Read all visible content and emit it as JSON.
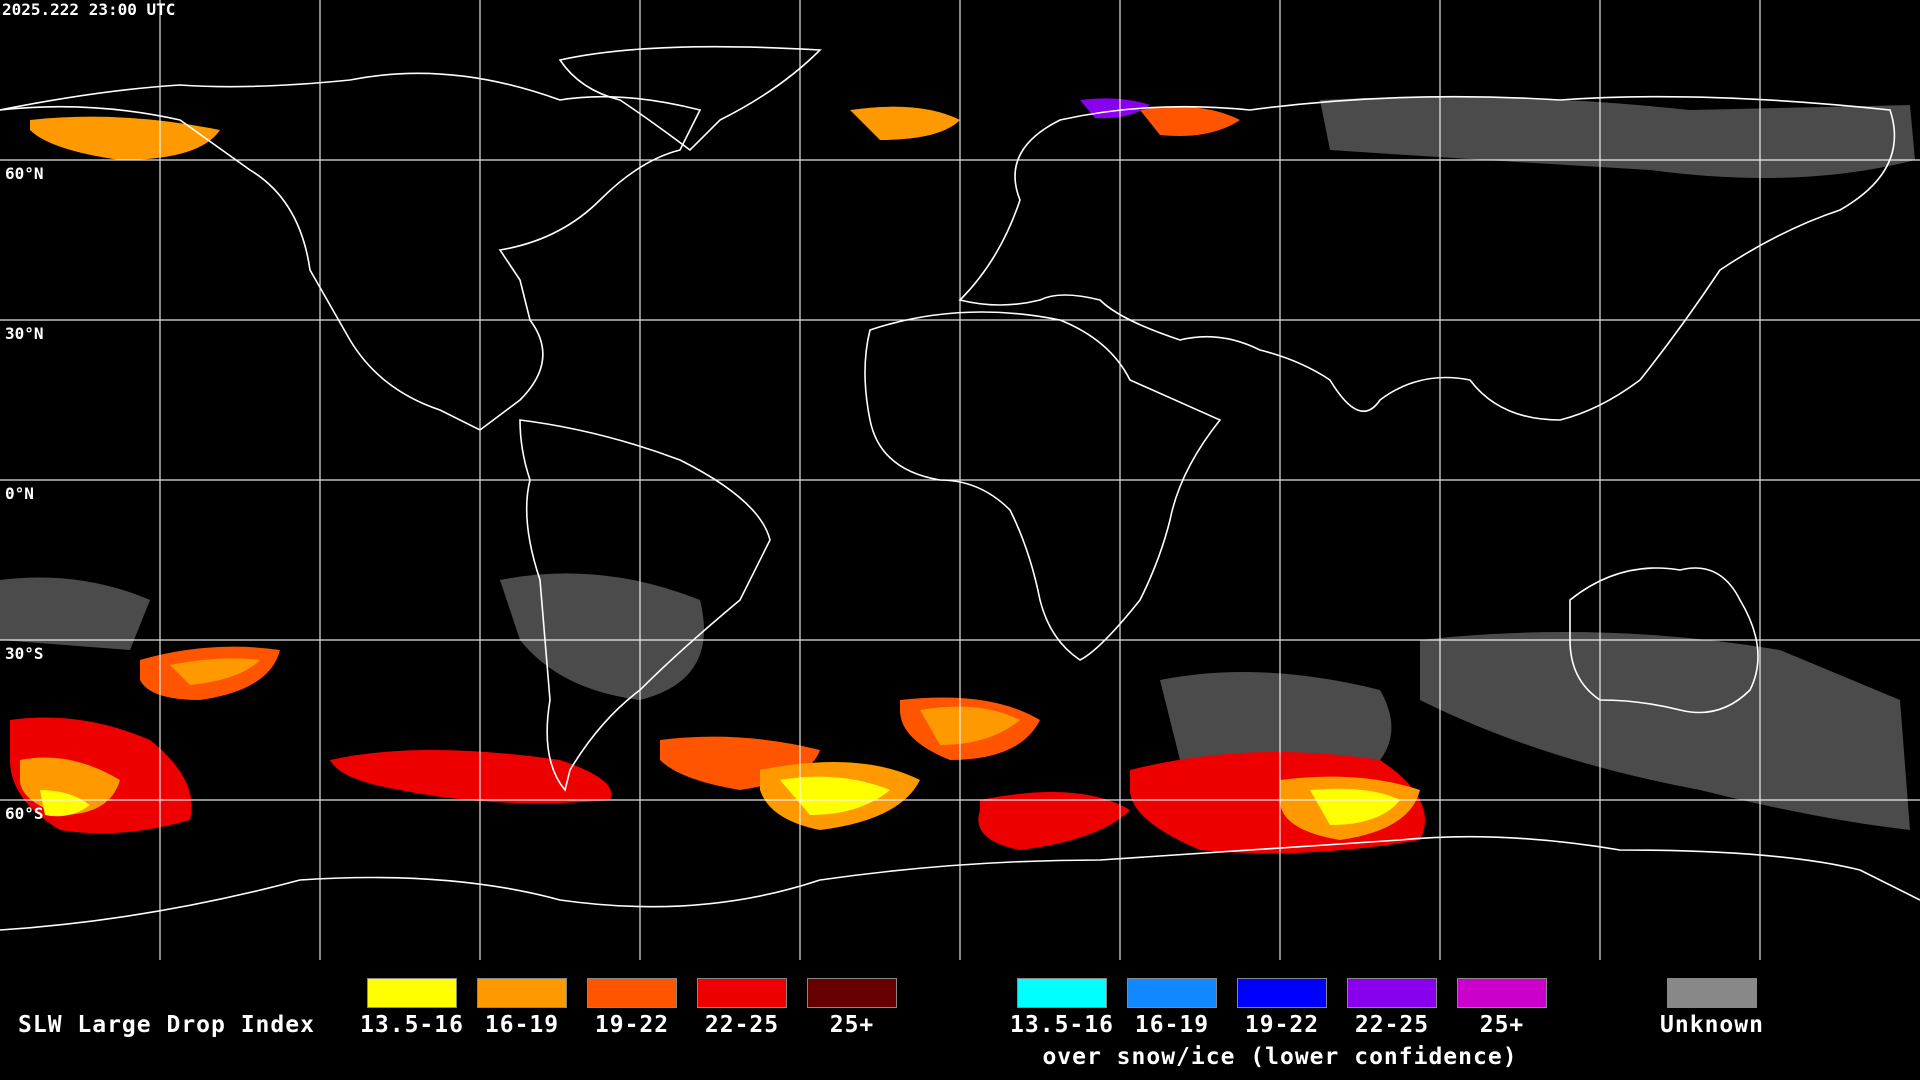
{
  "timestamp": "2025.222 23:00 UTC",
  "map": {
    "projection": "equirectangular",
    "lon_range": [
      -180,
      180
    ],
    "lat_range": [
      -90,
      90
    ],
    "lat_labels": [
      "60°N",
      "30°N",
      "0°N",
      "30°S",
      "60°S"
    ],
    "colors": {
      "background": "#000000",
      "grid": "#ffffff",
      "coastline": "#ffffff"
    }
  },
  "legend": {
    "title": "SLW Large Drop Index",
    "water": [
      {
        "label": "13.5-16",
        "color": "#ffff00"
      },
      {
        "label": "16-19",
        "color": "#ff9900"
      },
      {
        "label": "19-22",
        "color": "#ff5500"
      },
      {
        "label": "22-25",
        "color": "#ee0000"
      },
      {
        "label": "25+",
        "color": "#660000"
      }
    ],
    "ice": [
      {
        "label": "13.5-16",
        "color": "#00ffff"
      },
      {
        "label": "16-19",
        "color": "#1188ff"
      },
      {
        "label": "19-22",
        "color": "#0000ff"
      },
      {
        "label": "22-25",
        "color": "#8800ee"
      },
      {
        "label": "25+",
        "color": "#cc00cc"
      }
    ],
    "ice_note": "over snow/ice (lower confidence)",
    "unknown": {
      "label": "Unknown",
      "color": "#888888"
    }
  }
}
